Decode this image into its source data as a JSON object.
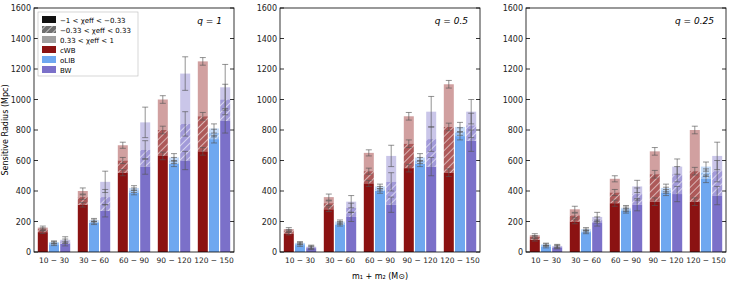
{
  "chart_data": [
    {
      "type": "bar",
      "stacked": true,
      "title": "q = 1",
      "y_label": "Sensitive Radius (Mpc)",
      "legend": "upper left",
      "segments": [
        "−1 < χeff < −0.33",
        "−0.33 < χeff < 0.33",
        "0.33 < χeff < 1"
      ],
      "categories": [
        "10 − 30",
        "30 − 60",
        "60 − 90",
        "90 − 120",
        "120 − 150"
      ],
      "ylim": [
        0,
        1600
      ],
      "yticks": [
        0,
        200,
        400,
        600,
        800,
        1000,
        1200,
        1400,
        1600
      ],
      "grid": false,
      "series": [
        {
          "name": "cWB",
          "color": "#8b1212",
          "stacks": [
            {
              "values": [
                130,
                310,
                520,
                630,
                660
              ],
              "errors": [
                8,
                15,
                20,
                25,
                25
              ]
            },
            {
              "values": [
                20,
                50,
                80,
                170,
                230
              ],
              "errors": [
                8,
                15,
                20,
                25,
                25
              ]
            },
            {
              "values": [
                10,
                40,
                100,
                200,
                360
              ],
              "errors": [
                10,
                20,
                20,
                25,
                25
              ]
            }
          ]
        },
        {
          "name": "oLIB",
          "color": "#6fa8f0",
          "stacks": [
            {
              "values": [
                50,
                190,
                390,
                580,
                740
              ],
              "errors": [
                8,
                10,
                15,
                20,
                25
              ]
            },
            {
              "values": [
                10,
                10,
                15,
                20,
                40
              ],
              "errors": [
                8,
                10,
                15,
                20,
                25
              ]
            },
            {
              "values": [
                5,
                10,
                15,
                20,
                30
              ],
              "errors": [
                8,
                10,
                15,
                25,
                30
              ]
            }
          ]
        },
        {
          "name": "BW",
          "color": "#7b70c9",
          "stacks": [
            {
              "values": [
                55,
                270,
                560,
                600,
                860
              ],
              "errors": [
                15,
                40,
                50,
                60,
                80
              ]
            },
            {
              "values": [
                15,
                90,
                110,
                240,
                140
              ],
              "errors": [
                15,
                50,
                60,
                80,
                100
              ]
            },
            {
              "values": [
                10,
                100,
                180,
                330,
                80
              ],
              "errors": [
                20,
                70,
                100,
                110,
                150
              ]
            }
          ]
        }
      ]
    },
    {
      "type": "bar",
      "stacked": true,
      "title": "q = 0.5",
      "x_label": "m₁ + m₂ (M⊙)",
      "categories": [
        "10 − 30",
        "30 − 60",
        "60 − 90",
        "90 − 120",
        "120 − 150"
      ],
      "ylim": [
        0,
        1600
      ],
      "yticks": [
        0,
        200,
        400,
        600,
        800,
        1000,
        1200,
        1400,
        1600
      ],
      "grid": false,
      "series": [
        {
          "name": "cWB",
          "color": "#8b1212",
          "stacks": [
            {
              "values": [
                120,
                280,
                450,
                550,
                520
              ],
              "errors": [
                8,
                15,
                20,
                25,
                25
              ]
            },
            {
              "values": [
                20,
                40,
                80,
                160,
                300
              ],
              "errors": [
                8,
                15,
                20,
                25,
                25
              ]
            },
            {
              "values": [
                10,
                40,
                120,
                180,
                280
              ],
              "errors": [
                10,
                20,
                20,
                25,
                25
              ]
            }
          ]
        },
        {
          "name": "oLIB",
          "color": "#6fa8f0",
          "stacks": [
            {
              "values": [
                45,
                180,
                400,
                580,
                760
              ],
              "errors": [
                8,
                10,
                15,
                20,
                25
              ]
            },
            {
              "values": [
                10,
                10,
                15,
                20,
                30
              ],
              "errors": [
                8,
                10,
                15,
                20,
                25
              ]
            },
            {
              "values": [
                5,
                10,
                15,
                20,
                30
              ],
              "errors": [
                8,
                10,
                15,
                25,
                30
              ]
            }
          ]
        },
        {
          "name": "BW",
          "color": "#7b70c9",
          "stacks": [
            {
              "values": [
                25,
                230,
                310,
                560,
                730
              ],
              "errors": [
                10,
                30,
                50,
                60,
                70
              ]
            },
            {
              "values": [
                5,
                60,
                150,
                180,
                100
              ],
              "errors": [
                10,
                30,
                60,
                80,
                80
              ]
            },
            {
              "values": [
                5,
                40,
                170,
                180,
                90
              ],
              "errors": [
                10,
                40,
                70,
                100,
                80
              ]
            }
          ]
        }
      ]
    },
    {
      "type": "bar",
      "stacked": true,
      "title": "q = 0.25",
      "categories": [
        "10 − 30",
        "30 − 60",
        "60 − 90",
        "90 − 120",
        "120 − 150"
      ],
      "ylim": [
        0,
        1600
      ],
      "yticks": [
        0,
        200,
        400,
        600,
        800,
        1000,
        1200,
        1400,
        1600
      ],
      "grid": false,
      "series": [
        {
          "name": "cWB",
          "color": "#8b1212",
          "stacks": [
            {
              "values": [
                80,
                200,
                320,
                330,
                330
              ],
              "errors": [
                8,
                15,
                20,
                25,
                25
              ]
            },
            {
              "values": [
                20,
                40,
                70,
                180,
                200
              ],
              "errors": [
                8,
                15,
                20,
                25,
                25
              ]
            },
            {
              "values": [
                10,
                40,
                90,
                150,
                270
              ],
              "errors": [
                10,
                20,
                20,
                25,
                25
              ]
            }
          ]
        },
        {
          "name": "oLIB",
          "color": "#6fa8f0",
          "stacks": [
            {
              "values": [
                35,
                130,
                270,
                390,
                480
              ],
              "errors": [
                8,
                10,
                15,
                20,
                25
              ]
            },
            {
              "values": [
                10,
                10,
                10,
                15,
                40
              ],
              "errors": [
                8,
                10,
                15,
                20,
                25
              ]
            },
            {
              "values": [
                5,
                10,
                10,
                15,
                40
              ],
              "errors": [
                8,
                10,
                15,
                25,
                30
              ]
            }
          ]
        },
        {
          "name": "BW",
          "color": "#7b70c9",
          "stacks": [
            {
              "values": [
                30,
                190,
                310,
                380,
                370
              ],
              "errors": [
                10,
                20,
                40,
                50,
                60
              ]
            },
            {
              "values": [
                5,
                20,
                70,
                130,
                160
              ],
              "errors": [
                10,
                20,
                40,
                50,
                70
              ]
            },
            {
              "values": [
                5,
                20,
                50,
                50,
                100
              ],
              "errors": [
                10,
                30,
                40,
                50,
                90
              ]
            }
          ]
        }
      ]
    }
  ]
}
